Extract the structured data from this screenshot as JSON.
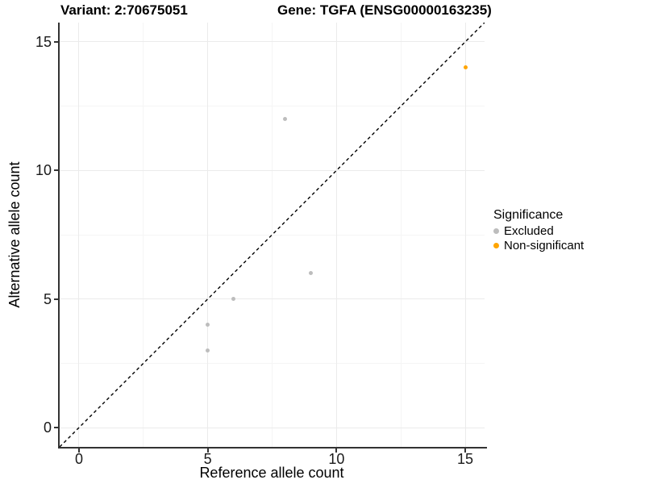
{
  "figure": {
    "titles": {
      "variant": "Variant: 2:70675051",
      "gene": "Gene: TGFA (ENSG00000163235)"
    }
  },
  "axes": {
    "x_title": "Reference allele count",
    "y_title": "Alternative allele count"
  },
  "legend": {
    "title": "Significance",
    "items": [
      {
        "label": "Excluded",
        "color": "#bdbdbd"
      },
      {
        "label": "Non-significant",
        "color": "#ffa500"
      }
    ]
  },
  "chart_data": {
    "type": "scatter",
    "title": "Variant: 2:70675051 | Gene: TGFA (ENSG00000163235)",
    "xlabel": "Reference allele count",
    "ylabel": "Alternative allele count",
    "xlim": [
      -0.75,
      15.75
    ],
    "ylim": [
      -0.75,
      15.75
    ],
    "x_ticks": [
      0,
      5,
      10,
      15
    ],
    "y_ticks": [
      0,
      5,
      10,
      15
    ],
    "x_minor_ticks": [
      2.5,
      7.5,
      12.5
    ],
    "y_minor_ticks": [
      2.5,
      7.5,
      12.5
    ],
    "grid": "major+minor",
    "legend_title": "Significance",
    "legend_position": "right",
    "reference_line": {
      "kind": "identity y=x",
      "style": "dashed",
      "color": "#000000"
    },
    "series": [
      {
        "name": "Excluded",
        "color": "#bdbdbd",
        "points": [
          [
            5,
            3
          ],
          [
            5,
            4
          ],
          [
            6,
            5
          ],
          [
            8,
            12
          ],
          [
            9,
            6
          ]
        ]
      },
      {
        "name": "Non-significant",
        "color": "#ffa500",
        "points": [
          [
            15,
            14
          ]
        ]
      }
    ],
    "colors": {
      "grid_major": "#ebebeb",
      "grid_minor": "#f5f5f5",
      "axis_line": "#333333"
    }
  }
}
